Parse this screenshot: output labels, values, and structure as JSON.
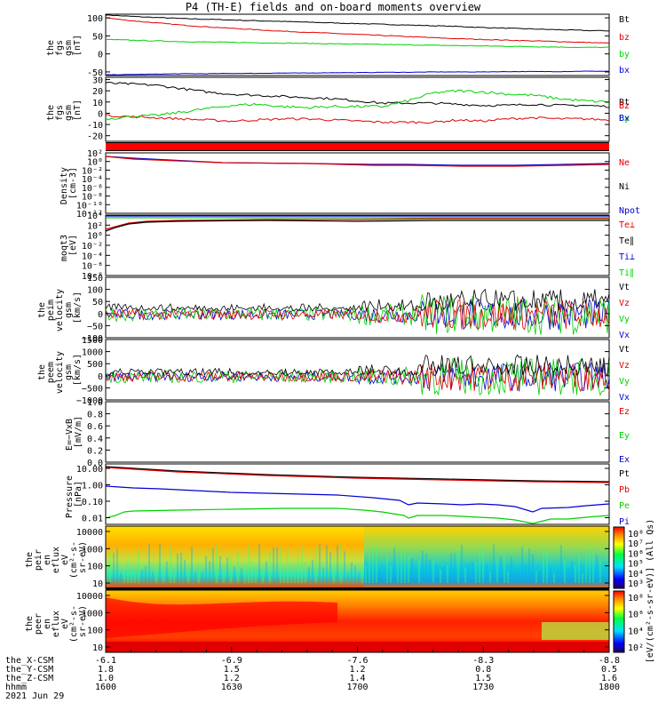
{
  "header": {
    "title": "P4 (TH-E) fields and on-board moments overview"
  },
  "colors": {
    "black": "#000000",
    "red": "#e00000",
    "green": "#00d000",
    "blue": "#0000d0"
  },
  "chart_data": [
    {
      "type": "line",
      "id": "p1",
      "ylabel": [
        "the",
        "fgs",
        "gsm",
        "[nT]"
      ],
      "ylim": [
        -60,
        110
      ],
      "yticks": [
        100,
        50,
        0,
        -50
      ],
      "series": [
        {
          "name": "Bt",
          "color": "#000000",
          "x": [
            1600,
            1610,
            1620,
            1630,
            1640,
            1650,
            1660,
            1670,
            1680,
            1690,
            1700,
            1710,
            1720,
            1730,
            1740,
            1750,
            1760,
            1770,
            1780,
            1790,
            1800
          ],
          "values": [
            108,
            104,
            101,
            98,
            96,
            94,
            92,
            90,
            88,
            86,
            84,
            82,
            80,
            78,
            76,
            73,
            71,
            69,
            67,
            65,
            64
          ],
          "noise": 1
        },
        {
          "name": "bz",
          "color": "#e00000",
          "x": [
            1600,
            1610,
            1620,
            1630,
            1640,
            1650,
            1660,
            1670,
            1680,
            1690,
            1700,
            1710,
            1720,
            1730,
            1740,
            1750,
            1760,
            1770,
            1780,
            1790,
            1800
          ],
          "values": [
            100,
            92,
            86,
            80,
            75,
            71,
            67,
            63,
            60,
            57,
            54,
            51,
            48,
            45,
            42,
            40,
            38,
            36,
            34,
            32,
            30
          ],
          "noise": 1
        },
        {
          "name": "by",
          "color": "#00d000",
          "x": [
            1600,
            1610,
            1620,
            1630,
            1640,
            1650,
            1660,
            1670,
            1680,
            1690,
            1700,
            1710,
            1720,
            1730,
            1740,
            1750,
            1760,
            1770,
            1780,
            1790,
            1800
          ],
          "values": [
            40,
            38,
            36,
            34,
            33,
            32,
            31,
            30,
            29,
            28,
            27,
            26,
            25,
            24,
            23,
            22,
            21,
            20,
            19,
            18,
            18
          ],
          "noise": 1
        },
        {
          "name": "bx",
          "color": "#0000d0",
          "x": [
            1600,
            1610,
            1620,
            1630,
            1640,
            1650,
            1660,
            1670,
            1680,
            1690,
            1700,
            1710,
            1720,
            1730,
            1740,
            1750,
            1760,
            1770,
            1780,
            1790,
            1800
          ],
          "values": [
            -58,
            -57,
            -56,
            -55,
            -55,
            -54,
            -54,
            -53,
            -53,
            -52,
            -52,
            -51,
            -51,
            -50,
            -50,
            -50,
            -49,
            -49,
            -49,
            -48,
            -48
          ],
          "noise": 0.5
        }
      ]
    },
    {
      "type": "line",
      "id": "p2",
      "ylabel": [
        "the",
        "fgs",
        "gsm",
        "[nT]"
      ],
      "ylim": [
        -25,
        32
      ],
      "yticks": [
        30,
        20,
        10,
        0,
        -10,
        -20
      ],
      "series": [
        {
          "name": "Bt",
          "color": "#000000",
          "x": [
            1600,
            1610,
            1620,
            1630,
            1640,
            1650,
            1660,
            1670,
            1680,
            1690,
            1700,
            1710,
            1720,
            1730,
            1740,
            1750,
            1760,
            1770,
            1780,
            1790,
            1800
          ],
          "values": [
            27,
            26,
            25,
            22,
            19,
            17,
            16,
            15,
            14,
            13,
            11,
            9,
            9,
            9,
            8,
            7,
            7,
            8,
            7,
            7,
            6
          ],
          "noise": 1
        },
        {
          "name": "Bz",
          "color": "#e00000",
          "x": [
            1600,
            1610,
            1620,
            1630,
            1640,
            1650,
            1660,
            1670,
            1680,
            1690,
            1700,
            1710,
            1720,
            1730,
            1740,
            1750,
            1760,
            1770,
            1780,
            1790,
            1800
          ],
          "values": [
            -2,
            -3,
            -4,
            -5,
            -6,
            -7,
            -6,
            -5,
            -5,
            -6,
            -7,
            -8,
            -8,
            -8,
            -6,
            -7,
            -5,
            -4,
            -5,
            -5,
            -6
          ],
          "noise": 1
        },
        {
          "name": "By",
          "color": "#00d000",
          "x": [
            1600,
            1610,
            1620,
            1630,
            1640,
            1650,
            1660,
            1670,
            1680,
            1690,
            1700,
            1710,
            1720,
            1730,
            1740,
            1750,
            1760,
            1770,
            1780,
            1790,
            1800
          ],
          "values": [
            -5,
            -3,
            -2,
            1,
            4,
            7,
            8,
            6,
            5,
            6,
            6,
            6,
            11,
            18,
            20,
            19,
            17,
            16,
            13,
            11,
            10
          ],
          "noise": 1.2
        },
        {
          "name": "Bx",
          "color": "#0000d0",
          "x": [
            1600,
            1800
          ],
          "values": [
            null,
            null
          ],
          "noise": 0
        }
      ]
    }
  ],
  "panels": [
    {
      "id": "p3",
      "ylabel": [
        "Density",
        "[cm-3]"
      ],
      "yticks": [
        "10²",
        "10⁰",
        "10⁻²",
        "10⁻⁴",
        "10⁻⁶",
        "10⁻⁸",
        "10⁻¹⁰",
        "10⁻¹²"
      ],
      "legend": [
        {
          "name": "Ne",
          "color": "#e00000"
        },
        {
          "name": "Ni",
          "color": "#000000"
        },
        {
          "name": "Npot",
          "color": "#0000d0"
        }
      ]
    },
    {
      "id": "p4",
      "ylabel": [
        "moqt3",
        "[eV]"
      ],
      "yticks": [
        "10⁴",
        "10²",
        "10⁰",
        "10⁻²",
        "10⁻⁴",
        "10⁻⁶",
        "10⁻⁸"
      ],
      "legend": [
        {
          "name": "Te⊥",
          "color": "#e00000"
        },
        {
          "name": "Te∥",
          "color": "#000000"
        },
        {
          "name": "Ti⊥",
          "color": "#0000d0"
        },
        {
          "name": "Ti∥",
          "color": "#00d000"
        }
      ]
    },
    {
      "id": "p5",
      "ylabel": [
        "the",
        "peim",
        "velocity",
        "gsm",
        "[km/s]"
      ],
      "yticks": [
        "150",
        "100",
        "50",
        "0",
        "−50",
        "−100"
      ],
      "legend": [
        {
          "name": "Vt",
          "color": "#000000"
        },
        {
          "name": "Vz",
          "color": "#e00000"
        },
        {
          "name": "Vy",
          "color": "#00d000"
        },
        {
          "name": "Vx",
          "color": "#0000d0"
        }
      ]
    },
    {
      "id": "p6",
      "ylabel": [
        "the",
        "peem",
        "velocity",
        "gsm",
        "[km/s]"
      ],
      "yticks": [
        "1500",
        "1000",
        "500",
        "0",
        "−500",
        "−1000"
      ],
      "legend": [
        {
          "name": "Vt",
          "color": "#000000"
        },
        {
          "name": "Vz",
          "color": "#e00000"
        },
        {
          "name": "Vy",
          "color": "#00d000"
        },
        {
          "name": "Vx",
          "color": "#0000d0"
        }
      ]
    },
    {
      "id": "p7",
      "ylabel": [
        "E=−VxB",
        "[mV/m]"
      ],
      "yticks": [
        "1.0",
        "0.8",
        "0.6",
        "0.4",
        "0.2",
        "0.0"
      ],
      "legend": [
        {
          "name": "Ez",
          "color": "#e00000"
        },
        {
          "name": "Ey",
          "color": "#00d000"
        },
        {
          "name": "Ex",
          "color": "#0000d0"
        }
      ]
    },
    {
      "id": "p8",
      "ylabel": [
        "Pressure",
        "[nPa]"
      ],
      "yticks": [
        "10.00",
        "1.00",
        "0.10",
        "0.01"
      ],
      "legend": [
        {
          "name": "Pt",
          "color": "#000000"
        },
        {
          "name": "Pb",
          "color": "#e00000"
        },
        {
          "name": "Pe",
          "color": "#00d000"
        },
        {
          "name": "Pi",
          "color": "#0000d0"
        }
      ]
    },
    {
      "id": "p9",
      "ylabel": [
        "the",
        "peir",
        "en",
        "eflux",
        "eV",
        "(cm²-s-",
        "sr-eV)"
      ],
      "yticks": [
        "10000",
        "1000",
        "100",
        "10"
      ],
      "cbar": [
        "10⁸",
        "10⁷",
        "10⁶",
        "10⁵",
        "10⁴",
        "10³"
      ]
    },
    {
      "id": "p10",
      "ylabel": [
        "the",
        "peer",
        "en",
        "eflux",
        "eV",
        "(cm²-s-",
        "sr-eV)"
      ],
      "yticks": [
        "10000",
        "1000",
        "100",
        "10"
      ],
      "cbar": [
        "10⁸",
        "10⁶",
        "10⁴",
        "10²"
      ]
    }
  ],
  "cbar_title": "[eV/(cm²-s-sr-eV)] (All Qs)",
  "xaxis": {
    "rows": [
      {
        "label": "the_X-CSM",
        "values": [
          "-6.1",
          "-6.9",
          "-7.6",
          "-8.3",
          "-8.8"
        ]
      },
      {
        "label": "the_Y-CSM",
        "values": [
          "1.8",
          "1.5",
          "1.2",
          "0.8",
          "0.5"
        ]
      },
      {
        "label": "the_Z-CSM",
        "values": [
          "1.0",
          "1.2",
          "1.4",
          "1.5",
          "1.6"
        ]
      },
      {
        "label": "hhmm",
        "values": [
          "1600",
          "1630",
          "1700",
          "1730",
          "1800"
        ]
      }
    ],
    "date": "2021 Jun 29"
  }
}
